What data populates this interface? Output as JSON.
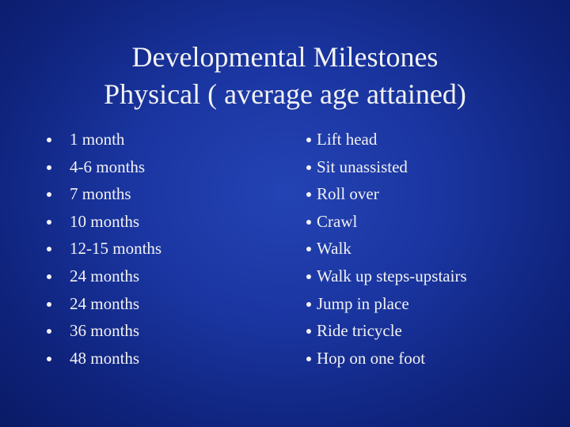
{
  "title": {
    "lines": [
      "Developmental Milestones",
      "Physical ( average age attained)"
    ]
  },
  "left_list": {
    "items": [
      "1 month",
      "4-6 months",
      "7 months",
      "10 months",
      "12-15 months",
      "24 months",
      "24 months",
      "36 months",
      "48 months"
    ]
  },
  "right_list": {
    "items": [
      "Lift head",
      "Sit unassisted",
      "Roll over",
      "Crawl",
      "Walk",
      "Walk up steps-upstairs",
      "Jump in place",
      "Ride tricycle",
      "Hop on one foot"
    ]
  }
}
